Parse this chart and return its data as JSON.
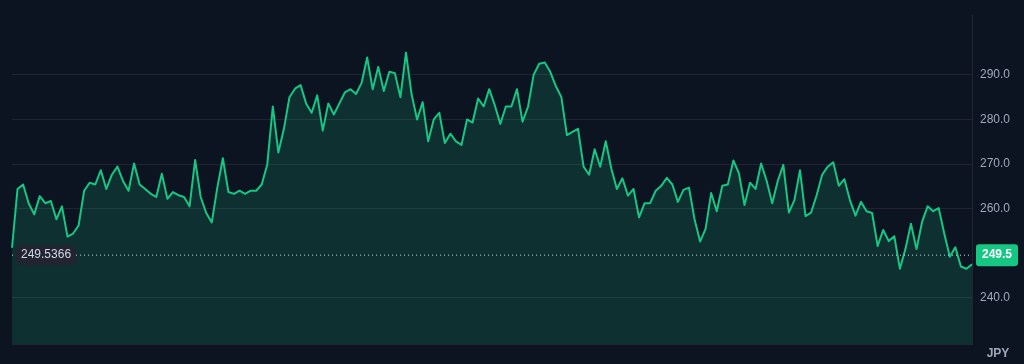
{
  "chart_data": {
    "type": "area",
    "ylabel": "JPY",
    "categories": [
      null,
      null,
      null,
      null,
      null,
      null,
      null,
      null,
      null,
      null,
      null,
      null,
      null,
      null,
      null,
      null,
      null,
      null,
      null,
      null,
      null,
      null,
      null,
      null,
      null,
      null,
      null,
      null,
      null,
      null,
      null,
      null,
      null,
      null,
      null,
      null,
      null,
      null,
      null,
      null,
      null,
      null,
      null,
      null,
      null,
      null,
      null,
      null,
      null,
      null,
      null,
      null,
      null,
      null,
      null,
      null,
      null,
      null,
      null,
      null,
      null,
      null,
      null,
      null,
      null,
      null,
      null,
      null,
      null,
      null,
      null,
      null,
      null,
      null,
      null,
      null,
      null,
      null,
      null,
      null,
      null,
      null,
      null,
      null,
      null,
      null,
      null,
      null,
      null,
      null,
      null,
      null,
      null,
      null,
      null,
      null,
      null,
      null,
      null,
      null,
      null,
      null,
      null,
      null,
      null,
      null,
      null,
      null,
      null,
      null,
      null,
      null,
      null,
      null,
      null,
      null,
      null,
      null,
      null,
      null,
      null,
      null,
      null,
      null,
      null,
      null,
      null,
      null,
      null,
      null,
      null,
      null,
      null,
      null,
      null,
      null,
      null,
      null,
      null,
      null,
      null,
      null,
      null,
      null,
      null,
      null,
      null,
      null,
      null,
      null,
      null,
      null,
      null,
      null,
      null,
      null,
      null,
      null,
      null,
      null,
      null,
      null,
      null,
      null,
      null,
      null,
      null,
      null,
      null,
      null,
      null,
      null,
      null,
      null
    ],
    "series": [
      {
        "color": "#16c784",
        "values": [
          251.2,
          264.4,
          265.4,
          261.2,
          258.7,
          262.8,
          261.2,
          261.7,
          257.6,
          260.5,
          253.7,
          254.4,
          256.2,
          264,
          265.8,
          265.4,
          268.6,
          264.4,
          267.6,
          269.4,
          266.2,
          264,
          270.1,
          265.4,
          264.4,
          263.3,
          262.6,
          267.8,
          262.2,
          263.7,
          263,
          262.6,
          260.5,
          270.9,
          262.6,
          259,
          256.9,
          264.7,
          271.3,
          263.7,
          263.3,
          264,
          263.3,
          264,
          264,
          265.4,
          269.9,
          282.9,
          272.6,
          277.9,
          285,
          286.9,
          287.7,
          283.6,
          281.5,
          285.4,
          277.5,
          283.6,
          281.1,
          283.6,
          286.1,
          286.8,
          285.7,
          288.2,
          293.9,
          286.8,
          291.8,
          286.4,
          290.7,
          290.4,
          285,
          295,
          285.7,
          280,
          283.9,
          275.1,
          280,
          281.5,
          274.7,
          276.8,
          275.1,
          274.3,
          280,
          279.3,
          284.7,
          282.9,
          286.8,
          283.2,
          279,
          282.9,
          282.9,
          286.8,
          279.5,
          282.9,
          290,
          292.5,
          292.8,
          290.7,
          287.5,
          285,
          276.5,
          277.2,
          277.9,
          269.4,
          267.6,
          273.3,
          269.4,
          275.1,
          269,
          264.4,
          266.8,
          262.9,
          264.4,
          258,
          261.2,
          261.2,
          264,
          265.1,
          266.9,
          265.4,
          261.5,
          264.2,
          264.7,
          257.6,
          252.6,
          255.5,
          263.5,
          259.4,
          265.1,
          265.4,
          270.8,
          267.9,
          260.8,
          265.8,
          264.4,
          270.1,
          266.2,
          261.2,
          266.2,
          269.8,
          259.1,
          261.9,
          268.6,
          258.3,
          259.1,
          263,
          267.6,
          269.4,
          270.4,
          265.1,
          266.6,
          261.9,
          258.4,
          261.5,
          259.4,
          259,
          251.6,
          255.2,
          252.7,
          253.8,
          246.5,
          250.9,
          256.6,
          250.9,
          257,
          260.5,
          259.4,
          260.1,
          254.4,
          249.2,
          251.3,
          247,
          246.5,
          247.5
        ]
      }
    ],
    "ylim": [
      229.6,
      303.4
    ],
    "yticks": [
      {
        "value": 240,
        "label": "240.0"
      },
      {
        "value": 260,
        "label": "260.0"
      },
      {
        "value": 270,
        "label": "270.0"
      },
      {
        "value": 280,
        "label": "280.0"
      },
      {
        "value": 290,
        "label": "290.0"
      }
    ],
    "grid": "y",
    "ref_lines": [
      {
        "axis": "y",
        "value": 249.5366,
        "label": "249.5366",
        "color": "#cfd6e4",
        "line_style": "dotted"
      }
    ],
    "annotations": [
      "249.5"
    ]
  }
}
